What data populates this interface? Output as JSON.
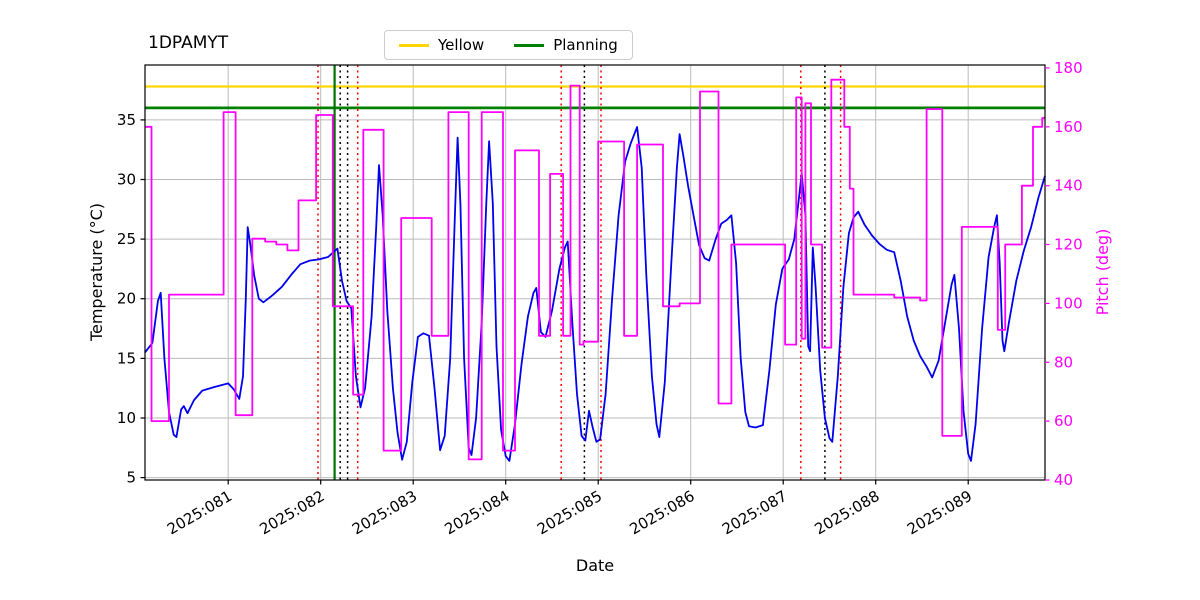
{
  "chart_data": {
    "type": "line",
    "title": "1DPAMYT",
    "xlabel": "Date",
    "ylabel_left": "Temperature (°C)",
    "ylabel_right": "Pitch (deg)",
    "xlim": [
      80.1,
      89.83
    ],
    "ylim_left": [
      4.8,
      39.6
    ],
    "ylim_right": [
      40,
      181
    ],
    "grid": true,
    "x_ticks": [
      81,
      82,
      83,
      84,
      85,
      86,
      87,
      88,
      89
    ],
    "x_ticklabels": [
      "2025:081",
      "2025:082",
      "2025:083",
      "2025:084",
      "2025:085",
      "2025:086",
      "2025:087",
      "2025:088",
      "2025:089"
    ],
    "y_ticks_left": [
      5,
      10,
      15,
      20,
      25,
      30,
      35
    ],
    "y_ticklabels_left": [
      "5",
      "10",
      "15",
      "20",
      "25",
      "30",
      "35"
    ],
    "y_ticks_right": [
      40,
      60,
      80,
      100,
      120,
      140,
      160,
      180
    ],
    "y_ticklabels_right": [
      "40",
      "60",
      "80",
      "100",
      "120",
      "140",
      "160",
      "180"
    ],
    "legend": {
      "position": "top-center",
      "entries": [
        {
          "label": "Yellow",
          "color": "#ffd700"
        },
        {
          "label": "Planning",
          "color": "#008000"
        }
      ]
    },
    "limit_lines": [
      {
        "name": "Yellow",
        "value": 37.8,
        "axis": "left",
        "color": "#ffd700",
        "width": 2.2
      },
      {
        "name": "Planning",
        "value": 36.0,
        "axis": "left",
        "color": "#008000",
        "width": 2.8
      }
    ],
    "vlines": {
      "red_dotted": [
        81.97,
        82.4,
        84.6,
        85.03,
        87.19,
        87.62
      ],
      "black_dotted": [
        82.21,
        82.29,
        84.85,
        87.45
      ],
      "green_solid": [
        82.15
      ]
    },
    "colors": {
      "grid": "#bbbbbb",
      "axis": "#000000",
      "temperature_line": "#0000ee",
      "pitch_line": "#ff00ff",
      "right_axis_text": "#ff00ff"
    },
    "series": [
      {
        "name": "Temperature",
        "axis": "left",
        "style": "line",
        "color": "#0000ee",
        "points": [
          [
            80.1,
            15.5
          ],
          [
            80.18,
            16.3
          ],
          [
            80.24,
            19.8
          ],
          [
            80.27,
            20.5
          ],
          [
            80.31,
            15.0
          ],
          [
            80.36,
            10.5
          ],
          [
            80.41,
            8.6
          ],
          [
            80.44,
            8.4
          ],
          [
            80.49,
            10.7
          ],
          [
            80.52,
            11.0
          ],
          [
            80.56,
            10.4
          ],
          [
            80.63,
            11.5
          ],
          [
            80.72,
            12.3
          ],
          [
            80.85,
            12.6
          ],
          [
            81.0,
            12.9
          ],
          [
            81.06,
            12.4
          ],
          [
            81.12,
            11.6
          ],
          [
            81.16,
            13.5
          ],
          [
            81.19,
            20.0
          ],
          [
            81.21,
            26.0
          ],
          [
            81.24,
            24.5
          ],
          [
            81.28,
            22.0
          ],
          [
            81.33,
            20.0
          ],
          [
            81.38,
            19.7
          ],
          [
            81.48,
            20.3
          ],
          [
            81.58,
            21.0
          ],
          [
            81.68,
            22.0
          ],
          [
            81.78,
            22.9
          ],
          [
            81.88,
            23.2
          ],
          [
            81.98,
            23.3
          ],
          [
            82.08,
            23.5
          ],
          [
            82.18,
            24.2
          ],
          [
            82.23,
            21.5
          ],
          [
            82.28,
            19.8
          ],
          [
            82.33,
            19.2
          ],
          [
            82.38,
            13.5
          ],
          [
            82.43,
            10.9
          ],
          [
            82.48,
            12.5
          ],
          [
            82.55,
            18.5
          ],
          [
            82.6,
            26.0
          ],
          [
            82.63,
            31.2
          ],
          [
            82.67,
            27.0
          ],
          [
            82.72,
            19.0
          ],
          [
            82.78,
            12.5
          ],
          [
            82.83,
            8.8
          ],
          [
            82.88,
            6.5
          ],
          [
            82.93,
            8.0
          ],
          [
            82.99,
            13.0
          ],
          [
            83.05,
            16.8
          ],
          [
            83.11,
            17.1
          ],
          [
            83.17,
            16.9
          ],
          [
            83.23,
            12.5
          ],
          [
            83.29,
            7.3
          ],
          [
            83.34,
            8.5
          ],
          [
            83.4,
            15.0
          ],
          [
            83.45,
            27.0
          ],
          [
            83.48,
            33.5
          ],
          [
            83.51,
            28.0
          ],
          [
            83.55,
            15.0
          ],
          [
            83.6,
            7.5
          ],
          [
            83.63,
            6.9
          ],
          [
            83.68,
            10.0
          ],
          [
            83.74,
            18.0
          ],
          [
            83.79,
            28.0
          ],
          [
            83.82,
            33.2
          ],
          [
            83.86,
            28.0
          ],
          [
            83.9,
            16.0
          ],
          [
            83.95,
            9.0
          ],
          [
            84.0,
            6.8
          ],
          [
            84.04,
            6.4
          ],
          [
            84.1,
            9.5
          ],
          [
            84.17,
            14.5
          ],
          [
            84.24,
            18.5
          ],
          [
            84.3,
            20.5
          ],
          [
            84.33,
            20.9
          ],
          [
            84.38,
            17.2
          ],
          [
            84.43,
            16.8
          ],
          [
            84.5,
            19.0
          ],
          [
            84.58,
            22.5
          ],
          [
            84.64,
            24.3
          ],
          [
            84.67,
            24.8
          ],
          [
            84.72,
            18.0
          ],
          [
            84.77,
            12.0
          ],
          [
            84.82,
            8.5
          ],
          [
            84.86,
            8.1
          ],
          [
            84.9,
            10.6
          ],
          [
            84.94,
            9.2
          ],
          [
            84.98,
            8.0
          ],
          [
            85.02,
            8.2
          ],
          [
            85.08,
            12.0
          ],
          [
            85.15,
            20.0
          ],
          [
            85.22,
            27.0
          ],
          [
            85.29,
            31.5
          ],
          [
            85.35,
            33.0
          ],
          [
            85.42,
            34.4
          ],
          [
            85.47,
            31.0
          ],
          [
            85.52,
            22.0
          ],
          [
            85.58,
            13.5
          ],
          [
            85.63,
            9.5
          ],
          [
            85.66,
            8.4
          ],
          [
            85.72,
            13.0
          ],
          [
            85.79,
            23.0
          ],
          [
            85.85,
            31.0
          ],
          [
            85.88,
            33.8
          ],
          [
            85.92,
            32.0
          ],
          [
            85.97,
            29.5
          ],
          [
            86.03,
            27.0
          ],
          [
            86.09,
            24.5
          ],
          [
            86.15,
            23.4
          ],
          [
            86.2,
            23.2
          ],
          [
            86.27,
            25.0
          ],
          [
            86.33,
            26.3
          ],
          [
            86.39,
            26.6
          ],
          [
            86.44,
            27.0
          ],
          [
            86.49,
            23.0
          ],
          [
            86.54,
            15.0
          ],
          [
            86.59,
            10.5
          ],
          [
            86.63,
            9.3
          ],
          [
            86.7,
            9.2
          ],
          [
            86.78,
            9.4
          ],
          [
            86.85,
            14.0
          ],
          [
            86.92,
            19.5
          ],
          [
            86.99,
            22.5
          ],
          [
            87.06,
            23.3
          ],
          [
            87.12,
            25.0
          ],
          [
            87.17,
            28.5
          ],
          [
            87.2,
            30.5
          ],
          [
            87.24,
            27.0
          ],
          [
            87.27,
            16.0
          ],
          [
            87.29,
            15.6
          ],
          [
            87.32,
            24.3
          ],
          [
            87.35,
            21.0
          ],
          [
            87.4,
            14.0
          ],
          [
            87.45,
            10.0
          ],
          [
            87.5,
            8.3
          ],
          [
            87.53,
            8.0
          ],
          [
            87.59,
            13.5
          ],
          [
            87.65,
            21.0
          ],
          [
            87.71,
            25.5
          ],
          [
            87.76,
            26.8
          ],
          [
            87.81,
            27.3
          ],
          [
            87.88,
            26.2
          ],
          [
            87.96,
            25.3
          ],
          [
            88.04,
            24.6
          ],
          [
            88.12,
            24.1
          ],
          [
            88.2,
            23.9
          ],
          [
            88.27,
            21.5
          ],
          [
            88.34,
            18.5
          ],
          [
            88.41,
            16.5
          ],
          [
            88.48,
            15.2
          ],
          [
            88.55,
            14.3
          ],
          [
            88.61,
            13.4
          ],
          [
            88.68,
            14.8
          ],
          [
            88.75,
            18.0
          ],
          [
            88.82,
            21.2
          ],
          [
            88.85,
            22.0
          ],
          [
            88.9,
            17.5
          ],
          [
            88.95,
            10.5
          ],
          [
            89.0,
            7.0
          ],
          [
            89.03,
            6.4
          ],
          [
            89.08,
            9.5
          ],
          [
            89.15,
            17.5
          ],
          [
            89.22,
            23.5
          ],
          [
            89.28,
            26.0
          ],
          [
            89.31,
            27.0
          ],
          [
            89.34,
            23.0
          ],
          [
            89.37,
            16.5
          ],
          [
            89.39,
            15.6
          ],
          [
            89.44,
            18.0
          ],
          [
            89.52,
            21.5
          ],
          [
            89.6,
            24.0
          ],
          [
            89.68,
            26.0
          ],
          [
            89.76,
            28.5
          ],
          [
            89.83,
            30.3
          ]
        ]
      },
      {
        "name": "Pitch",
        "axis": "right",
        "style": "step",
        "color": "#ff00ff",
        "points": [
          [
            80.1,
            160
          ],
          [
            80.17,
            60
          ],
          [
            80.36,
            103
          ],
          [
            80.95,
            165
          ],
          [
            81.08,
            62
          ],
          [
            81.26,
            122
          ],
          [
            81.4,
            121
          ],
          [
            81.52,
            120
          ],
          [
            81.64,
            118
          ],
          [
            81.76,
            135
          ],
          [
            81.95,
            164
          ],
          [
            82.13,
            99
          ],
          [
            82.35,
            69
          ],
          [
            82.46,
            159
          ],
          [
            82.68,
            50
          ],
          [
            82.87,
            129
          ],
          [
            83.2,
            89
          ],
          [
            83.38,
            165
          ],
          [
            83.6,
            47
          ],
          [
            83.74,
            165
          ],
          [
            83.97,
            50
          ],
          [
            84.1,
            152
          ],
          [
            84.36,
            89
          ],
          [
            84.48,
            144
          ],
          [
            84.62,
            89
          ],
          [
            84.7,
            174
          ],
          [
            84.8,
            86
          ],
          [
            84.84,
            87
          ],
          [
            85.0,
            155
          ],
          [
            85.28,
            89
          ],
          [
            85.42,
            154
          ],
          [
            85.7,
            99
          ],
          [
            85.88,
            100
          ],
          [
            86.1,
            172
          ],
          [
            86.3,
            66
          ],
          [
            86.44,
            120
          ],
          [
            87.02,
            86
          ],
          [
            87.14,
            170
          ],
          [
            87.2,
            88
          ],
          [
            87.24,
            168
          ],
          [
            87.3,
            120
          ],
          [
            87.42,
            85
          ],
          [
            87.52,
            176
          ],
          [
            87.66,
            160
          ],
          [
            87.72,
            139
          ],
          [
            87.76,
            103
          ],
          [
            88.2,
            102
          ],
          [
            88.48,
            101
          ],
          [
            88.55,
            166
          ],
          [
            88.72,
            55
          ],
          [
            88.93,
            126
          ],
          [
            89.32,
            91
          ],
          [
            89.4,
            120
          ],
          [
            89.58,
            140
          ],
          [
            89.7,
            160
          ],
          [
            89.8,
            163
          ]
        ]
      }
    ]
  }
}
